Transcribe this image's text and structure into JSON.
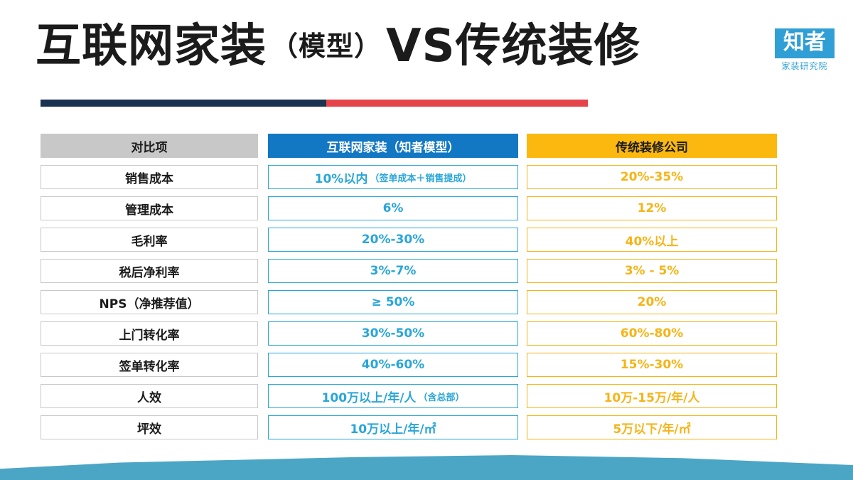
{
  "title": {
    "part1": "互联网家装",
    "paren": "（模型）",
    "part2": "VS传统装修"
  },
  "logo": {
    "main": "知者",
    "sub": "家装研究院"
  },
  "colors": {
    "navy_rule": "#1a3350",
    "red_rule": "#e5454a",
    "internet_blue": "#29a6d9",
    "traditional_orange": "#f6b417",
    "bottom_band": "#4ba6c6"
  },
  "table": {
    "headers": [
      "对比项",
      "互联网家装（知者模型）",
      "传统装修公司"
    ],
    "rows": [
      {
        "item": "销售成本",
        "internet": "10%以内",
        "internet_note": "（签单成本＋销售提成）",
        "traditional": "20%-35%"
      },
      {
        "item": "管理成本",
        "internet": "6%",
        "internet_note": "",
        "traditional": "12%"
      },
      {
        "item": "毛利率",
        "internet": "20%-30%",
        "internet_note": "",
        "traditional": "40%以上"
      },
      {
        "item": "税后净利率",
        "internet": "3%-7%",
        "internet_note": "",
        "traditional": "3% - 5%"
      },
      {
        "item": "NPS（净推荐值）",
        "internet": "≥ 50%",
        "internet_note": "",
        "traditional": "20%"
      },
      {
        "item": "上门转化率",
        "internet": "30%-50%",
        "internet_note": "",
        "traditional": "60%-80%"
      },
      {
        "item": "签单转化率",
        "internet": "40%-60%",
        "internet_note": "",
        "traditional": "15%-30%"
      },
      {
        "item": "人效",
        "internet": "100万以上/年/人",
        "internet_note": "（含总部）",
        "traditional": "10万-15万/年/人"
      },
      {
        "item": "坪效",
        "internet": "10万以上/年/㎡",
        "internet_note": "",
        "traditional": "5万以下/年/㎡"
      }
    ]
  }
}
